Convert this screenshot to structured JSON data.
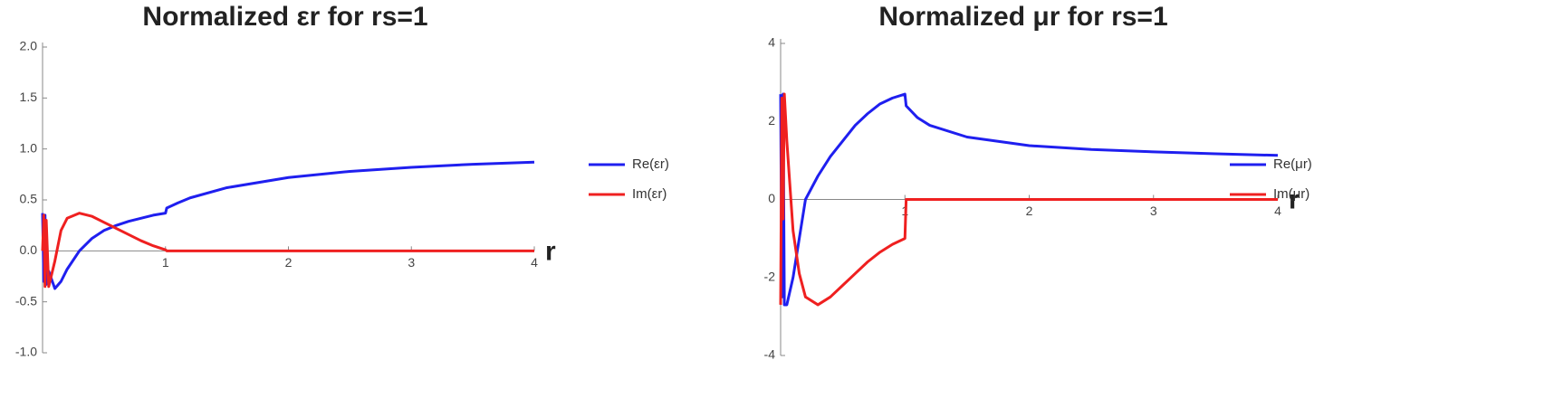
{
  "chart_data": [
    {
      "type": "line",
      "title": "Normalized εr for rs=1",
      "xlabel": "r",
      "x": [
        0,
        0.01,
        0.02,
        0.03,
        0.05,
        0.1,
        0.15,
        0.2,
        0.3,
        0.4,
        0.5,
        0.6,
        0.7,
        0.8,
        0.9,
        1.0,
        1.01,
        1.1,
        1.2,
        1.5,
        2,
        2.5,
        3,
        3.5,
        4
      ],
      "series": [
        {
          "name": "Re(εr)",
          "color": "#1f1fef",
          "values": [
            0.37,
            -0.3,
            0.35,
            -0.33,
            -0.2,
            -0.37,
            -0.3,
            -0.18,
            0,
            0.12,
            0.2,
            0.25,
            0.29,
            0.32,
            0.35,
            0.37,
            0.42,
            0.47,
            0.52,
            0.62,
            0.72,
            0.78,
            0.82,
            0.85,
            0.87
          ]
        },
        {
          "name": "Im(εr)",
          "color": "#ef2020",
          "values": [
            0,
            0.35,
            -0.35,
            0.3,
            -0.35,
            -0.1,
            0.2,
            0.32,
            0.37,
            0.34,
            0.28,
            0.22,
            0.16,
            0.1,
            0.05,
            0.01,
            0,
            0,
            0,
            0,
            0,
            0,
            0,
            0,
            0
          ]
        }
      ],
      "xlim": [
        0,
        4
      ],
      "xticks": [
        1,
        2,
        3,
        4
      ],
      "ylim": [
        -1,
        2
      ],
      "yticks": [
        {
          "value": -1,
          "label": "-1.0"
        },
        -0.5,
        {
          "value": 0,
          "label": "0.0"
        },
        0.5,
        {
          "value": 1,
          "label": "1.0"
        },
        1.5,
        {
          "value": 2,
          "label": "2.0"
        }
      ],
      "legend": "right"
    },
    {
      "type": "line",
      "title": "Normalized μr for rs=1",
      "xlabel": "r",
      "x": [
        0,
        0.01,
        0.02,
        0.03,
        0.05,
        0.1,
        0.15,
        0.2,
        0.3,
        0.4,
        0.5,
        0.6,
        0.7,
        0.8,
        0.9,
        1.0,
        1.01,
        1.1,
        1.2,
        1.5,
        2,
        2.5,
        3,
        3.5,
        4
      ],
      "series": [
        {
          "name": "Re(μr)",
          "color": "#1f1fef",
          "values": [
            2.7,
            -2.5,
            2.7,
            -2.7,
            -2.7,
            -2.0,
            -1.0,
            0,
            0.6,
            1.1,
            1.5,
            1.9,
            2.2,
            2.45,
            2.6,
            2.7,
            2.4,
            2.1,
            1.9,
            1.6,
            1.38,
            1.28,
            1.22,
            1.17,
            1.13
          ]
        },
        {
          "name": "Im(μr)",
          "color": "#ef2020",
          "values": [
            -2.7,
            2.6,
            -0.5,
            2.7,
            1.5,
            -0.8,
            -1.9,
            -2.5,
            -2.7,
            -2.5,
            -2.2,
            -1.9,
            -1.6,
            -1.35,
            -1.15,
            -1.0,
            0,
            0,
            0,
            0,
            0,
            0,
            0,
            0,
            0
          ]
        }
      ],
      "xlim": [
        0,
        4
      ],
      "xticks": [
        1,
        2,
        3,
        4
      ],
      "ylim": [
        -4,
        4
      ],
      "yticks": [
        -4,
        -2,
        0,
        2,
        4
      ],
      "legend": "right"
    }
  ]
}
